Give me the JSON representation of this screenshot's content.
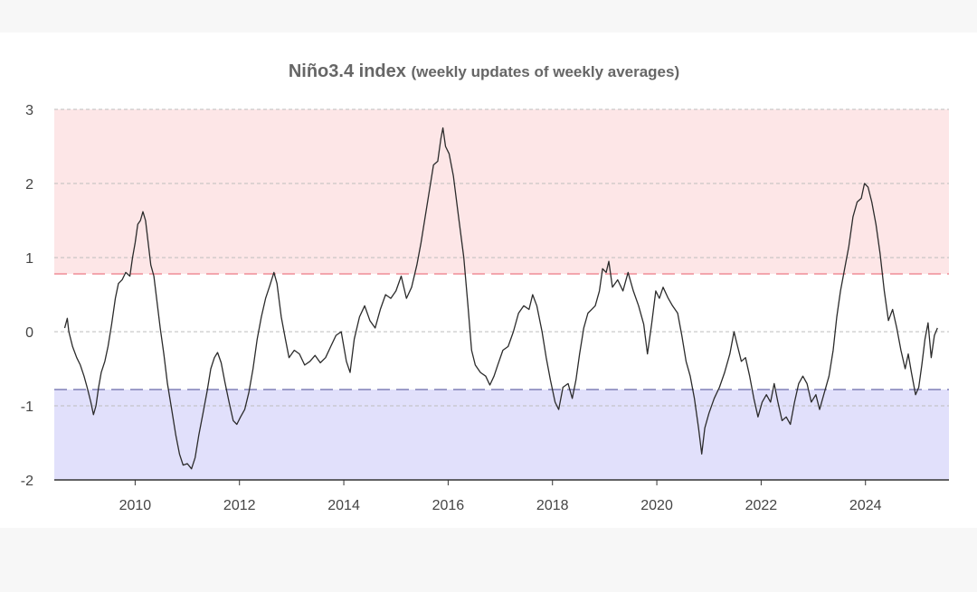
{
  "chart_data": {
    "type": "line",
    "title": "Niño3.4 index",
    "subtitle": "(weekly updates of weekly averages)",
    "xlabel": "",
    "ylabel": "",
    "xlim": [
      2008.45,
      2025.6
    ],
    "ylim": [
      -2,
      3
    ],
    "x_ticks": [
      2010,
      2012,
      2014,
      2016,
      2018,
      2020,
      2022,
      2024
    ],
    "x_tick_labels": [
      "2010",
      "2012",
      "2014",
      "2016",
      "2018",
      "2020",
      "2022",
      "2024"
    ],
    "y_ticks": [
      3,
      2,
      1,
      0,
      -1,
      -2
    ],
    "y_tick_labels": [
      "3",
      "2",
      "1",
      "0",
      "-1",
      "-2"
    ],
    "grid": true,
    "thresholds": {
      "el_nino": 0.78,
      "la_nina": -0.78
    },
    "colors": {
      "warm_band": "#fde6e7",
      "cool_band": "#e1e0fb",
      "warm_line": "#f3a6ad",
      "cool_line": "#9c9cc9",
      "series_line": "#2b2b2b",
      "grid": "#bdbdbd"
    },
    "series": [
      {
        "values": [
          [
            2008.65,
            0.05
          ],
          [
            2008.7,
            0.18
          ],
          [
            2008.73,
            0.0
          ],
          [
            2008.8,
            -0.2
          ],
          [
            2008.88,
            -0.35
          ],
          [
            2008.95,
            -0.45
          ],
          [
            2009.02,
            -0.6
          ],
          [
            2009.08,
            -0.75
          ],
          [
            2009.15,
            -0.95
          ],
          [
            2009.2,
            -1.12
          ],
          [
            2009.25,
            -1.0
          ],
          [
            2009.3,
            -0.75
          ],
          [
            2009.35,
            -0.55
          ],
          [
            2009.42,
            -0.4
          ],
          [
            2009.48,
            -0.2
          ],
          [
            2009.55,
            0.1
          ],
          [
            2009.62,
            0.45
          ],
          [
            2009.68,
            0.65
          ],
          [
            2009.75,
            0.7
          ],
          [
            2009.82,
            0.8
          ],
          [
            2009.9,
            0.75
          ],
          [
            2009.95,
            1.0
          ],
          [
            2010.0,
            1.2
          ],
          [
            2010.05,
            1.45
          ],
          [
            2010.1,
            1.5
          ],
          [
            2010.15,
            1.62
          ],
          [
            2010.2,
            1.5
          ],
          [
            2010.25,
            1.2
          ],
          [
            2010.3,
            0.9
          ],
          [
            2010.36,
            0.75
          ],
          [
            2010.42,
            0.4
          ],
          [
            2010.48,
            0.05
          ],
          [
            2010.55,
            -0.3
          ],
          [
            2010.62,
            -0.7
          ],
          [
            2010.7,
            -1.05
          ],
          [
            2010.78,
            -1.4
          ],
          [
            2010.85,
            -1.65
          ],
          [
            2010.92,
            -1.8
          ],
          [
            2011.0,
            -1.78
          ],
          [
            2011.08,
            -1.85
          ],
          [
            2011.15,
            -1.7
          ],
          [
            2011.22,
            -1.4
          ],
          [
            2011.3,
            -1.1
          ],
          [
            2011.38,
            -0.8
          ],
          [
            2011.45,
            -0.5
          ],
          [
            2011.52,
            -0.35
          ],
          [
            2011.58,
            -0.28
          ],
          [
            2011.65,
            -0.42
          ],
          [
            2011.72,
            -0.68
          ],
          [
            2011.8,
            -0.95
          ],
          [
            2011.88,
            -1.2
          ],
          [
            2011.95,
            -1.25
          ],
          [
            2012.02,
            -1.15
          ],
          [
            2012.1,
            -1.05
          ],
          [
            2012.18,
            -0.82
          ],
          [
            2012.26,
            -0.5
          ],
          [
            2012.34,
            -0.1
          ],
          [
            2012.42,
            0.2
          ],
          [
            2012.5,
            0.45
          ],
          [
            2012.58,
            0.62
          ],
          [
            2012.66,
            0.8
          ],
          [
            2012.72,
            0.65
          ],
          [
            2012.8,
            0.2
          ],
          [
            2012.88,
            -0.1
          ],
          [
            2012.95,
            -0.35
          ],
          [
            2013.05,
            -0.25
          ],
          [
            2013.15,
            -0.3
          ],
          [
            2013.25,
            -0.45
          ],
          [
            2013.35,
            -0.4
          ],
          [
            2013.45,
            -0.32
          ],
          [
            2013.55,
            -0.42
          ],
          [
            2013.65,
            -0.35
          ],
          [
            2013.75,
            -0.2
          ],
          [
            2013.85,
            -0.05
          ],
          [
            2013.95,
            0.0
          ],
          [
            2014.05,
            -0.4
          ],
          [
            2014.12,
            -0.55
          ],
          [
            2014.2,
            -0.1
          ],
          [
            2014.3,
            0.2
          ],
          [
            2014.4,
            0.35
          ],
          [
            2014.5,
            0.15
          ],
          [
            2014.6,
            0.05
          ],
          [
            2014.7,
            0.3
          ],
          [
            2014.8,
            0.5
          ],
          [
            2014.9,
            0.45
          ],
          [
            2015.0,
            0.55
          ],
          [
            2015.1,
            0.75
          ],
          [
            2015.2,
            0.45
          ],
          [
            2015.3,
            0.6
          ],
          [
            2015.4,
            0.9
          ],
          [
            2015.48,
            1.2
          ],
          [
            2015.56,
            1.55
          ],
          [
            2015.64,
            1.9
          ],
          [
            2015.72,
            2.25
          ],
          [
            2015.8,
            2.3
          ],
          [
            2015.86,
            2.6
          ],
          [
            2015.9,
            2.75
          ],
          [
            2015.95,
            2.5
          ],
          [
            2016.02,
            2.4
          ],
          [
            2016.1,
            2.1
          ],
          [
            2016.2,
            1.55
          ],
          [
            2016.3,
            1.0
          ],
          [
            2016.38,
            0.35
          ],
          [
            2016.45,
            -0.25
          ],
          [
            2016.52,
            -0.45
          ],
          [
            2016.62,
            -0.55
          ],
          [
            2016.72,
            -0.6
          ],
          [
            2016.8,
            -0.72
          ],
          [
            2016.88,
            -0.6
          ],
          [
            2016.95,
            -0.45
          ],
          [
            2017.05,
            -0.25
          ],
          [
            2017.15,
            -0.2
          ],
          [
            2017.25,
            0.0
          ],
          [
            2017.35,
            0.25
          ],
          [
            2017.45,
            0.35
          ],
          [
            2017.55,
            0.3
          ],
          [
            2017.62,
            0.5
          ],
          [
            2017.7,
            0.35
          ],
          [
            2017.8,
            0.0
          ],
          [
            2017.88,
            -0.35
          ],
          [
            2017.96,
            -0.65
          ],
          [
            2018.05,
            -0.95
          ],
          [
            2018.12,
            -1.05
          ],
          [
            2018.2,
            -0.75
          ],
          [
            2018.3,
            -0.7
          ],
          [
            2018.38,
            -0.9
          ],
          [
            2018.45,
            -0.65
          ],
          [
            2018.52,
            -0.3
          ],
          [
            2018.6,
            0.05
          ],
          [
            2018.68,
            0.25
          ],
          [
            2018.75,
            0.3
          ],
          [
            2018.82,
            0.35
          ],
          [
            2018.9,
            0.55
          ],
          [
            2018.96,
            0.85
          ],
          [
            2019.03,
            0.8
          ],
          [
            2019.08,
            0.95
          ],
          [
            2019.15,
            0.6
          ],
          [
            2019.25,
            0.7
          ],
          [
            2019.35,
            0.55
          ],
          [
            2019.45,
            0.8
          ],
          [
            2019.55,
            0.55
          ],
          [
            2019.65,
            0.35
          ],
          [
            2019.75,
            0.1
          ],
          [
            2019.82,
            -0.3
          ],
          [
            2019.9,
            0.1
          ],
          [
            2019.98,
            0.55
          ],
          [
            2020.05,
            0.45
          ],
          [
            2020.12,
            0.6
          ],
          [
            2020.22,
            0.45
          ],
          [
            2020.3,
            0.35
          ],
          [
            2020.4,
            0.25
          ],
          [
            2020.48,
            -0.05
          ],
          [
            2020.56,
            -0.4
          ],
          [
            2020.64,
            -0.6
          ],
          [
            2020.72,
            -0.9
          ],
          [
            2020.8,
            -1.3
          ],
          [
            2020.86,
            -1.65
          ],
          [
            2020.92,
            -1.3
          ],
          [
            2021.0,
            -1.1
          ],
          [
            2021.1,
            -0.9
          ],
          [
            2021.2,
            -0.75
          ],
          [
            2021.3,
            -0.55
          ],
          [
            2021.4,
            -0.3
          ],
          [
            2021.48,
            0.0
          ],
          [
            2021.55,
            -0.2
          ],
          [
            2021.62,
            -0.4
          ],
          [
            2021.7,
            -0.35
          ],
          [
            2021.78,
            -0.6
          ],
          [
            2021.86,
            -0.9
          ],
          [
            2021.94,
            -1.15
          ],
          [
            2022.02,
            -0.95
          ],
          [
            2022.1,
            -0.85
          ],
          [
            2022.18,
            -0.95
          ],
          [
            2022.25,
            -0.7
          ],
          [
            2022.32,
            -0.95
          ],
          [
            2022.4,
            -1.2
          ],
          [
            2022.48,
            -1.15
          ],
          [
            2022.56,
            -1.25
          ],
          [
            2022.64,
            -0.95
          ],
          [
            2022.72,
            -0.7
          ],
          [
            2022.8,
            -0.6
          ],
          [
            2022.88,
            -0.7
          ],
          [
            2022.96,
            -0.95
          ],
          [
            2023.05,
            -0.85
          ],
          [
            2023.12,
            -1.05
          ],
          [
            2023.2,
            -0.85
          ],
          [
            2023.3,
            -0.6
          ],
          [
            2023.38,
            -0.25
          ],
          [
            2023.45,
            0.2
          ],
          [
            2023.52,
            0.55
          ],
          [
            2023.6,
            0.85
          ],
          [
            2023.68,
            1.15
          ],
          [
            2023.76,
            1.55
          ],
          [
            2023.84,
            1.75
          ],
          [
            2023.92,
            1.8
          ],
          [
            2023.98,
            2.0
          ],
          [
            2024.05,
            1.95
          ],
          [
            2024.12,
            1.75
          ],
          [
            2024.2,
            1.45
          ],
          [
            2024.28,
            1.05
          ],
          [
            2024.36,
            0.55
          ],
          [
            2024.44,
            0.15
          ],
          [
            2024.52,
            0.3
          ],
          [
            2024.6,
            0.05
          ],
          [
            2024.68,
            -0.25
          ],
          [
            2024.76,
            -0.5
          ],
          [
            2024.82,
            -0.3
          ],
          [
            2024.88,
            -0.55
          ],
          [
            2024.96,
            -0.85
          ],
          [
            2025.02,
            -0.75
          ],
          [
            2025.08,
            -0.45
          ],
          [
            2025.14,
            -0.1
          ],
          [
            2025.2,
            0.12
          ],
          [
            2025.26,
            -0.35
          ],
          [
            2025.32,
            -0.05
          ],
          [
            2025.38,
            0.05
          ]
        ]
      }
    ]
  }
}
